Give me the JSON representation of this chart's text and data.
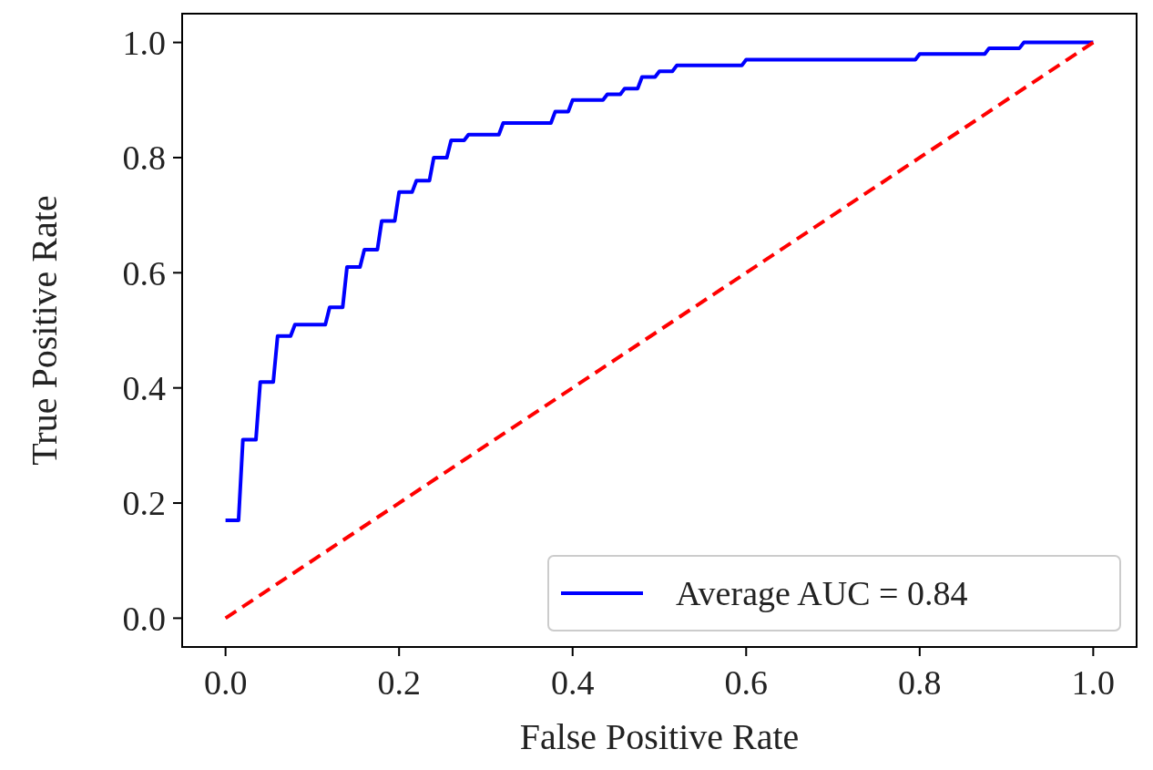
{
  "chart_data": {
    "type": "line",
    "xlabel": "False Positive Rate",
    "ylabel": "True Positive Rate",
    "xlim": [
      -0.05,
      1.05
    ],
    "ylim": [
      -0.05,
      1.05
    ],
    "xticks": [
      {
        "value": 0,
        "label": "0.0"
      },
      {
        "value": 0.2,
        "label": "0.2"
      },
      {
        "value": 0.4,
        "label": "0.4"
      },
      {
        "value": 0.6,
        "label": "0.6"
      },
      {
        "value": 0.8,
        "label": "0.8"
      },
      {
        "value": 1,
        "label": "1.0"
      }
    ],
    "yticks": [
      {
        "value": 0,
        "label": "0.0"
      },
      {
        "value": 0.2,
        "label": "0.2"
      },
      {
        "value": 0.4,
        "label": "0.4"
      },
      {
        "value": 0.6,
        "label": "0.6"
      },
      {
        "value": 0.8,
        "label": "0.8"
      },
      {
        "value": 1,
        "label": "1.0"
      }
    ],
    "grid": false,
    "legend": "bottom right",
    "series": [
      {
        "name": "Average AUC = 0.84",
        "color": "#0000ff",
        "line_style": "solid",
        "x": [
          0,
          0.015,
          0.02,
          0.035,
          0.04,
          0.055,
          0.06,
          0.075,
          0.08,
          0.115,
          0.12,
          0.135,
          0.14,
          0.155,
          0.16,
          0.175,
          0.18,
          0.195,
          0.2,
          0.215,
          0.22,
          0.235,
          0.24,
          0.255,
          0.26,
          0.275,
          0.28,
          0.315,
          0.32,
          0.375,
          0.38,
          0.395,
          0.4,
          0.435,
          0.44,
          0.455,
          0.46,
          0.475,
          0.48,
          0.495,
          0.5,
          0.515,
          0.52,
          0.595,
          0.6,
          0.795,
          0.8,
          0.875,
          0.88,
          0.915,
          0.92,
          1.0
        ],
        "values": [
          0.17,
          0.17,
          0.31,
          0.31,
          0.41,
          0.41,
          0.49,
          0.49,
          0.51,
          0.51,
          0.54,
          0.54,
          0.61,
          0.61,
          0.64,
          0.64,
          0.69,
          0.69,
          0.74,
          0.74,
          0.76,
          0.76,
          0.8,
          0.8,
          0.83,
          0.83,
          0.84,
          0.84,
          0.86,
          0.86,
          0.88,
          0.88,
          0.9,
          0.9,
          0.91,
          0.91,
          0.92,
          0.92,
          0.94,
          0.94,
          0.95,
          0.95,
          0.96,
          0.96,
          0.97,
          0.97,
          0.98,
          0.98,
          0.99,
          0.99,
          1.0,
          1.0
        ]
      },
      {
        "color": "#ff0000",
        "line_style": "dashed",
        "x": [
          0,
          1
        ],
        "values": [
          0,
          1
        ]
      }
    ]
  }
}
